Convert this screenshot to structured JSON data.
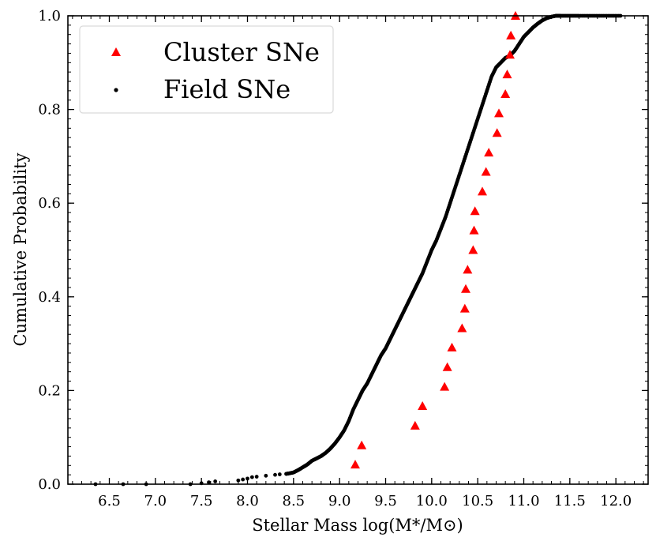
{
  "chart_data": {
    "type": "scatter",
    "title": "",
    "xlabel": "Stellar Mass log(M*/M⊙)",
    "ylabel": "Cumulative Probability",
    "xlim": [
      6.05,
      12.35
    ],
    "ylim": [
      0.0,
      1.0
    ],
    "xticks": [
      "6.5",
      "7.0",
      "7.5",
      "8.0",
      "8.5",
      "9.0",
      "9.5",
      "10.0",
      "10.5",
      "11.0",
      "11.5",
      "12.0"
    ],
    "yticks": [
      "0.0",
      "0.2",
      "0.4",
      "0.6",
      "0.8",
      "1.0"
    ],
    "legend": {
      "position": "top-left"
    },
    "series": [
      {
        "name": "Cluster SNe",
        "marker": "triangle",
        "color": "#ff0000",
        "x": [
          9.17,
          9.24,
          9.82,
          9.9,
          10.14,
          10.17,
          10.22,
          10.33,
          10.36,
          10.37,
          10.39,
          10.45,
          10.46,
          10.47,
          10.55,
          10.59,
          10.62,
          10.71,
          10.73,
          10.8,
          10.82,
          10.85,
          10.86,
          10.91
        ],
        "y": [
          0.042,
          0.083,
          0.125,
          0.167,
          0.208,
          0.25,
          0.292,
          0.333,
          0.375,
          0.417,
          0.458,
          0.5,
          0.542,
          0.583,
          0.625,
          0.667,
          0.708,
          0.75,
          0.792,
          0.833,
          0.875,
          0.917,
          0.958,
          1.0
        ]
      },
      {
        "name": "Field SNe",
        "marker": "dot",
        "color": "#000000",
        "x": [
          6.35,
          6.65,
          6.9,
          7.38,
          7.5,
          7.58,
          7.65,
          7.9,
          7.95,
          8.0,
          8.05,
          8.1,
          8.2,
          8.3,
          8.35,
          8.42,
          8.45,
          8.5,
          8.55,
          8.6,
          8.65,
          8.7,
          8.75,
          8.8,
          8.85,
          8.9,
          8.95,
          9.0,
          9.05,
          9.1,
          9.15,
          9.2,
          9.25,
          9.3,
          9.35,
          9.4,
          9.45,
          9.5,
          9.55,
          9.6,
          9.65,
          9.7,
          9.75,
          9.8,
          9.85,
          9.9,
          9.95,
          10.0,
          10.05,
          10.1,
          10.15,
          10.2,
          10.25,
          10.3,
          10.35,
          10.4,
          10.45,
          10.5,
          10.55,
          10.6,
          10.65,
          10.7,
          10.75,
          10.8,
          10.85,
          10.9,
          10.95,
          11.0,
          11.05,
          11.1,
          11.15,
          11.2,
          11.25,
          11.3,
          11.35,
          11.4,
          11.5,
          11.6,
          11.75,
          11.9,
          12.05
        ],
        "y": [
          0.0,
          0.0,
          0.0,
          0.0,
          0.002,
          0.004,
          0.006,
          0.008,
          0.01,
          0.012,
          0.015,
          0.016,
          0.018,
          0.02,
          0.021,
          0.022,
          0.023,
          0.025,
          0.03,
          0.036,
          0.042,
          0.05,
          0.055,
          0.06,
          0.067,
          0.076,
          0.087,
          0.1,
          0.115,
          0.135,
          0.16,
          0.18,
          0.2,
          0.215,
          0.235,
          0.255,
          0.275,
          0.29,
          0.31,
          0.33,
          0.35,
          0.37,
          0.39,
          0.41,
          0.43,
          0.45,
          0.475,
          0.5,
          0.52,
          0.545,
          0.57,
          0.6,
          0.63,
          0.66,
          0.69,
          0.72,
          0.75,
          0.78,
          0.81,
          0.84,
          0.87,
          0.89,
          0.9,
          0.91,
          0.915,
          0.925,
          0.94,
          0.955,
          0.965,
          0.975,
          0.983,
          0.99,
          0.995,
          0.998,
          1.0,
          1.0,
          1.0,
          1.0,
          1.0,
          1.0,
          1.0
        ]
      }
    ]
  }
}
